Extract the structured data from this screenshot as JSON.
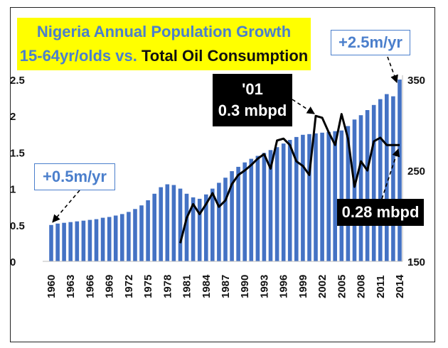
{
  "chart_data": {
    "type": "bar",
    "title_line1": "Nigeria Annual Population Growth",
    "title_line2_prefix": "15-64yr/olds vs. ",
    "title_line2_oil": "Total Oil Consumption",
    "x_tick_labels": [
      "1960",
      "1963",
      "1966",
      "1969",
      "1972",
      "1975",
      "1978",
      "1981",
      "1984",
      "1987",
      "1990",
      "1993",
      "1996",
      "1999",
      "2002",
      "2005",
      "2008",
      "2011",
      "2014"
    ],
    "y_left_ticks": [
      "0",
      "0.5",
      "1",
      "1.5",
      "2",
      "2.5"
    ],
    "y_right_ticks": [
      "150",
      "250",
      "350"
    ],
    "ylim_left": [
      0,
      2.5
    ],
    "ylim_right": [
      150,
      350
    ],
    "series": [
      {
        "axis": "left",
        "type": "bar",
        "color": "#4472c4",
        "x": [
          1960,
          1961,
          1962,
          1963,
          1964,
          1965,
          1966,
          1967,
          1968,
          1969,
          1970,
          1971,
          1972,
          1973,
          1974,
          1975,
          1976,
          1977,
          1978,
          1979,
          1980,
          1981,
          1982,
          1983,
          1984,
          1985,
          1986,
          1987,
          1988,
          1989,
          1990,
          1991,
          1992,
          1993,
          1994,
          1995,
          1996,
          1997,
          1998,
          1999,
          2000,
          2001,
          2002,
          2003,
          2004,
          2005,
          2006,
          2007,
          2008,
          2009,
          2010,
          2011,
          2012,
          2013,
          2014
        ],
        "values": [
          0.5,
          0.52,
          0.53,
          0.54,
          0.55,
          0.56,
          0.57,
          0.58,
          0.6,
          0.61,
          0.63,
          0.65,
          0.68,
          0.72,
          0.77,
          0.84,
          0.93,
          1.02,
          1.06,
          1.05,
          1.0,
          0.93,
          0.88,
          0.86,
          0.92,
          1.0,
          1.08,
          1.15,
          1.24,
          1.3,
          1.36,
          1.41,
          1.45,
          1.49,
          1.53,
          1.57,
          1.62,
          1.67,
          1.71,
          1.74,
          1.75,
          1.76,
          1.77,
          1.78,
          1.79,
          1.8,
          1.86,
          1.95,
          2.01,
          2.08,
          2.15,
          2.23,
          2.3,
          2.27,
          2.5
        ]
      },
      {
        "axis": "right",
        "type": "line",
        "color": "#000000",
        "x": [
          1980,
          1981,
          1982,
          1983,
          1984,
          1985,
          1986,
          1987,
          1988,
          1989,
          1990,
          1991,
          1992,
          1993,
          1994,
          1995,
          1996,
          1997,
          1998,
          1999,
          2000,
          2001,
          2002,
          2003,
          2004,
          2005,
          2006,
          2007,
          2008,
          2009,
          2010,
          2011,
          2012,
          2013,
          2014
        ],
        "values": [
          170,
          198,
          213,
          202,
          213,
          225,
          210,
          217,
          235,
          245,
          250,
          256,
          263,
          268,
          252,
          283,
          285,
          278,
          260,
          255,
          245,
          310,
          308,
          292,
          278,
          312,
          285,
          232,
          260,
          250,
          282,
          286,
          278,
          278,
          278
        ]
      }
    ]
  },
  "annotations": {
    "start_label": "+0.5m/yr",
    "end_label": "+2.5m/yr",
    "peak_label_line1": "'01",
    "peak_label_line2": "0.3 mbpd",
    "current_label": "0.28 mbpd"
  }
}
